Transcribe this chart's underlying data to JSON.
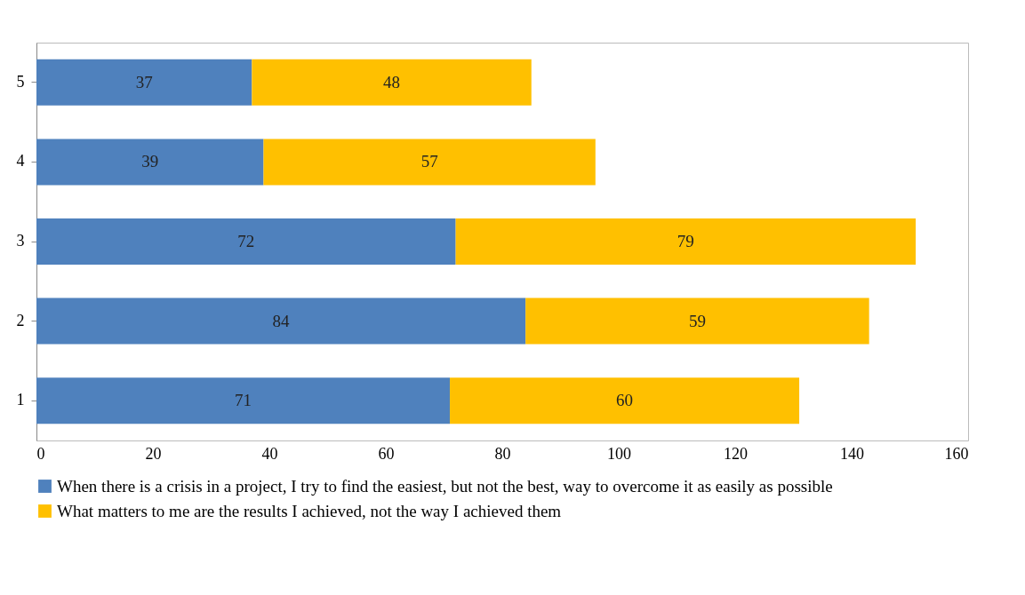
{
  "chart_data": {
    "type": "bar",
    "orientation": "horizontal",
    "stacked": true,
    "categories": [
      "5",
      "4",
      "3",
      "2",
      "1"
    ],
    "series": [
      {
        "name": "When there is a crisis in a project, I try to find the easiest, but not the best, way to overcome it as easily as possible",
        "color": "#4f81bd",
        "values": [
          37,
          39,
          72,
          84,
          71
        ]
      },
      {
        "name": "What matters to me are the results I achieved, not the way I achieved them",
        "color": "#ffc000",
        "values": [
          48,
          57,
          79,
          59,
          60
        ]
      }
    ],
    "xlim": [
      0,
      160
    ],
    "xticks": [
      0,
      20,
      40,
      60,
      80,
      100,
      120,
      140,
      160
    ],
    "grid": false,
    "legend": "bottom",
    "data_labels": true
  }
}
